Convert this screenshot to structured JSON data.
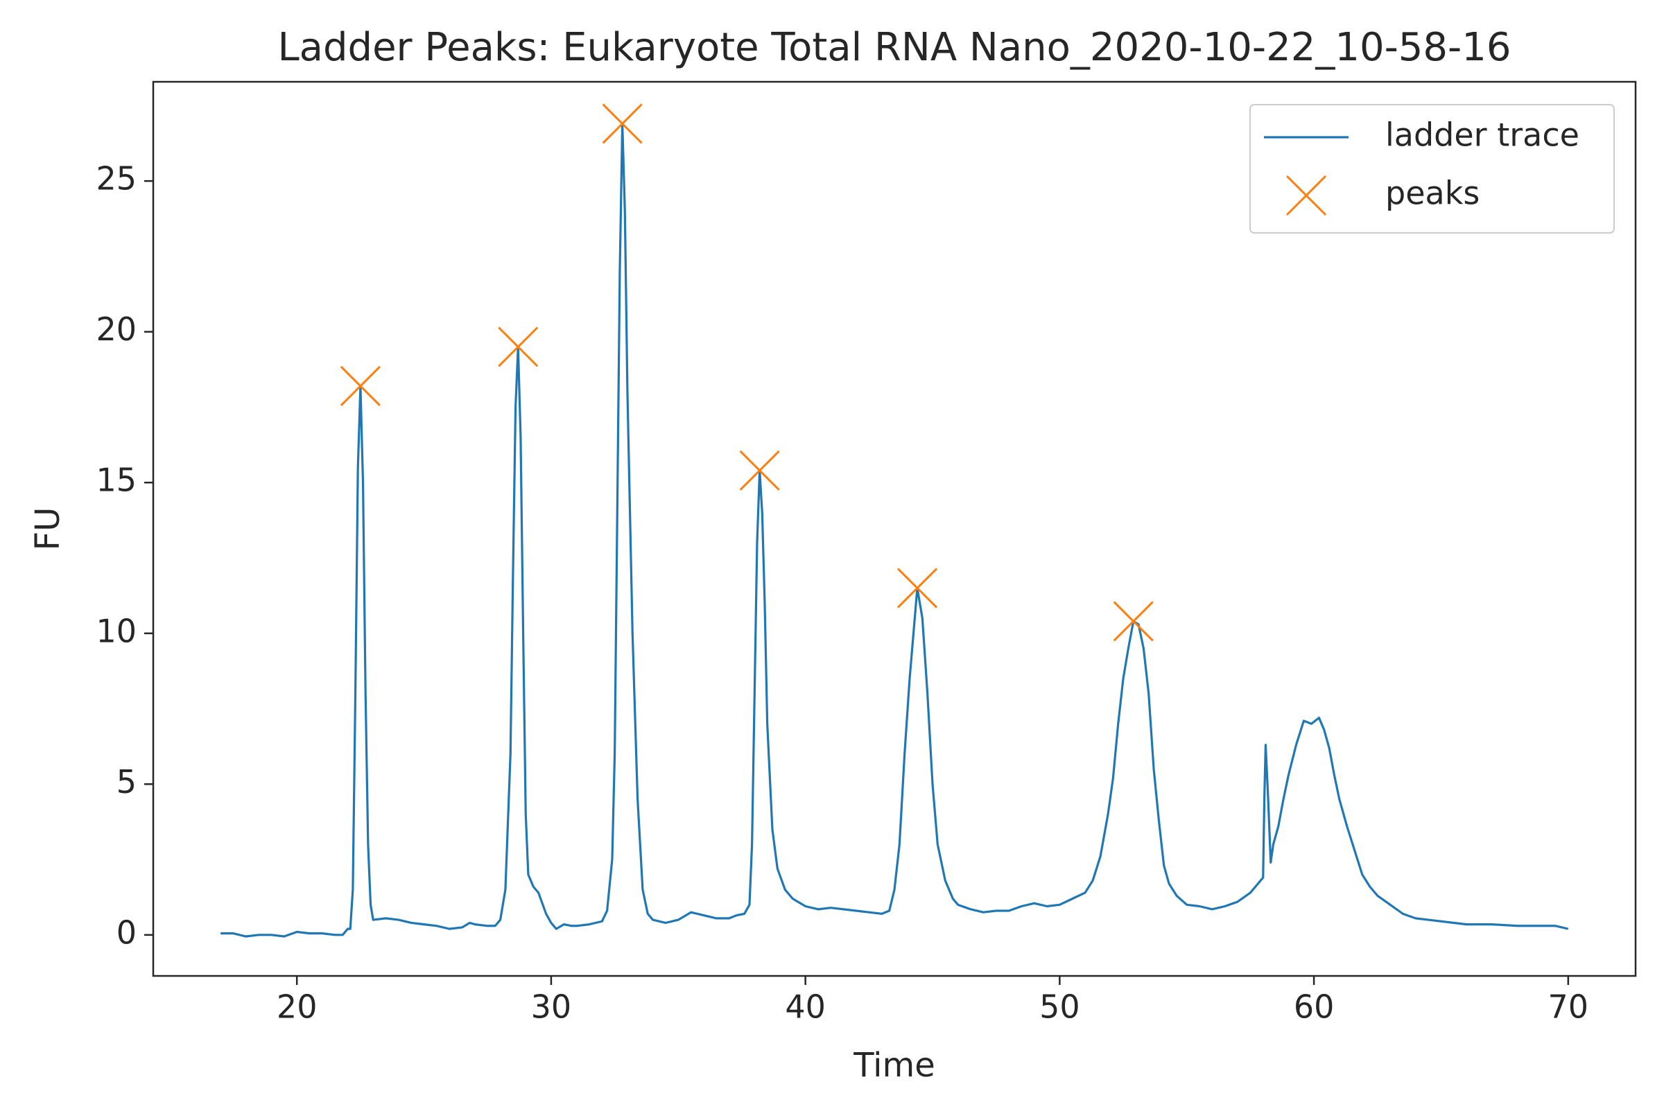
{
  "chart_data": {
    "type": "line",
    "title": "Ladder Peaks: Eukaryote Total RNA Nano_2020-10-22_10-58-16",
    "xlabel": "Time",
    "ylabel": "FU",
    "xlim": [
      14.35,
      72.65
    ],
    "ylim": [
      -1.36,
      28.29
    ],
    "xticks": [
      20,
      30,
      40,
      50,
      60,
      70
    ],
    "yticks": [
      0,
      5,
      10,
      15,
      20,
      25
    ],
    "legend": "upper right",
    "series": [
      {
        "name": "ladder trace",
        "type": "line",
        "color": "#1f77b4",
        "x": [
          17.0,
          17.5,
          18.0,
          18.5,
          19.0,
          19.5,
          20.0,
          20.5,
          21.0,
          21.5,
          21.8,
          22.0,
          22.1,
          22.2,
          22.3,
          22.4,
          22.5,
          22.6,
          22.7,
          22.8,
          22.9,
          23.0,
          23.5,
          24.0,
          24.5,
          25.0,
          25.5,
          26.0,
          26.5,
          26.8,
          27.0,
          27.5,
          27.8,
          28.0,
          28.2,
          28.4,
          28.5,
          28.6,
          28.7,
          28.8,
          28.9,
          29.0,
          29.1,
          29.3,
          29.5,
          29.8,
          30.0,
          30.2,
          30.5,
          30.8,
          31.0,
          31.5,
          32.0,
          32.2,
          32.4,
          32.5,
          32.6,
          32.7,
          32.8,
          32.9,
          33.0,
          33.2,
          33.4,
          33.6,
          33.8,
          34.0,
          34.5,
          35.0,
          35.5,
          36.0,
          36.5,
          37.0,
          37.3,
          37.6,
          37.8,
          37.9,
          38.0,
          38.1,
          38.2,
          38.3,
          38.4,
          38.5,
          38.7,
          38.9,
          39.2,
          39.5,
          40.0,
          40.5,
          41.0,
          41.5,
          42.0,
          42.5,
          43.0,
          43.3,
          43.5,
          43.7,
          43.9,
          44.1,
          44.3,
          44.4,
          44.6,
          44.8,
          45.0,
          45.2,
          45.5,
          45.8,
          46.0,
          46.5,
          47.0,
          47.5,
          48.0,
          48.5,
          49.0,
          49.5,
          50.0,
          50.5,
          51.0,
          51.3,
          51.6,
          51.9,
          52.1,
          52.3,
          52.5,
          52.7,
          52.9,
          53.1,
          53.3,
          53.5,
          53.7,
          53.9,
          54.1,
          54.3,
          54.6,
          55.0,
          55.5,
          56.0,
          56.5,
          57.0,
          57.5,
          57.8,
          58.0,
          58.05,
          58.1,
          58.2,
          58.3,
          58.4,
          58.6,
          58.8,
          59.0,
          59.3,
          59.6,
          59.9,
          60.2,
          60.4,
          60.6,
          60.8,
          61.0,
          61.3,
          61.6,
          61.9,
          62.2,
          62.5,
          63.0,
          63.5,
          64.0,
          64.5,
          65.0,
          66.0,
          67.0,
          68.0,
          69.0,
          69.5,
          70.0
        ],
        "values": [
          0.05,
          0.05,
          -0.05,
          0.0,
          0.0,
          -0.05,
          0.1,
          0.05,
          0.05,
          0.0,
          0.0,
          0.2,
          0.2,
          1.5,
          8.0,
          15.5,
          18.2,
          15.0,
          8.0,
          3.0,
          1.0,
          0.5,
          0.55,
          0.5,
          0.4,
          0.35,
          0.3,
          0.2,
          0.25,
          0.4,
          0.35,
          0.3,
          0.3,
          0.5,
          1.5,
          6.0,
          12.0,
          17.5,
          19.5,
          16.5,
          10.0,
          4.0,
          2.0,
          1.6,
          1.4,
          0.7,
          0.4,
          0.2,
          0.35,
          0.3,
          0.3,
          0.35,
          0.45,
          0.8,
          2.5,
          6.0,
          14.0,
          22.0,
          26.9,
          24.0,
          18.0,
          10.0,
          4.5,
          1.5,
          0.7,
          0.5,
          0.4,
          0.5,
          0.75,
          0.65,
          0.55,
          0.55,
          0.65,
          0.7,
          1.0,
          3.0,
          8.0,
          13.0,
          15.4,
          14.0,
          11.0,
          7.0,
          3.5,
          2.2,
          1.5,
          1.2,
          0.95,
          0.85,
          0.9,
          0.85,
          0.8,
          0.75,
          0.7,
          0.8,
          1.5,
          3.0,
          6.0,
          8.5,
          10.5,
          11.5,
          10.5,
          8.0,
          5.0,
          3.0,
          1.8,
          1.2,
          1.0,
          0.85,
          0.75,
          0.8,
          0.8,
          0.95,
          1.05,
          0.95,
          1.0,
          1.2,
          1.4,
          1.8,
          2.6,
          4.0,
          5.2,
          7.0,
          8.5,
          9.5,
          10.4,
          10.3,
          9.5,
          8.0,
          5.5,
          3.8,
          2.3,
          1.7,
          1.3,
          1.0,
          0.95,
          0.85,
          0.95,
          1.1,
          1.4,
          1.7,
          1.9,
          4.5,
          6.3,
          4.5,
          2.4,
          3.0,
          3.6,
          4.5,
          5.3,
          6.3,
          7.1,
          7.0,
          7.2,
          6.8,
          6.2,
          5.3,
          4.5,
          3.6,
          2.8,
          2.0,
          1.6,
          1.3,
          1.0,
          0.7,
          0.55,
          0.5,
          0.45,
          0.35,
          0.35,
          0.3,
          0.3,
          0.3,
          0.2
        ]
      },
      {
        "name": "peaks",
        "type": "scatter",
        "marker": "x",
        "color": "#ff7f0e",
        "x": [
          22.5,
          28.7,
          32.8,
          38.2,
          44.4,
          52.9
        ],
        "values": [
          18.2,
          19.5,
          26.9,
          15.4,
          11.5,
          10.4
        ]
      }
    ]
  }
}
